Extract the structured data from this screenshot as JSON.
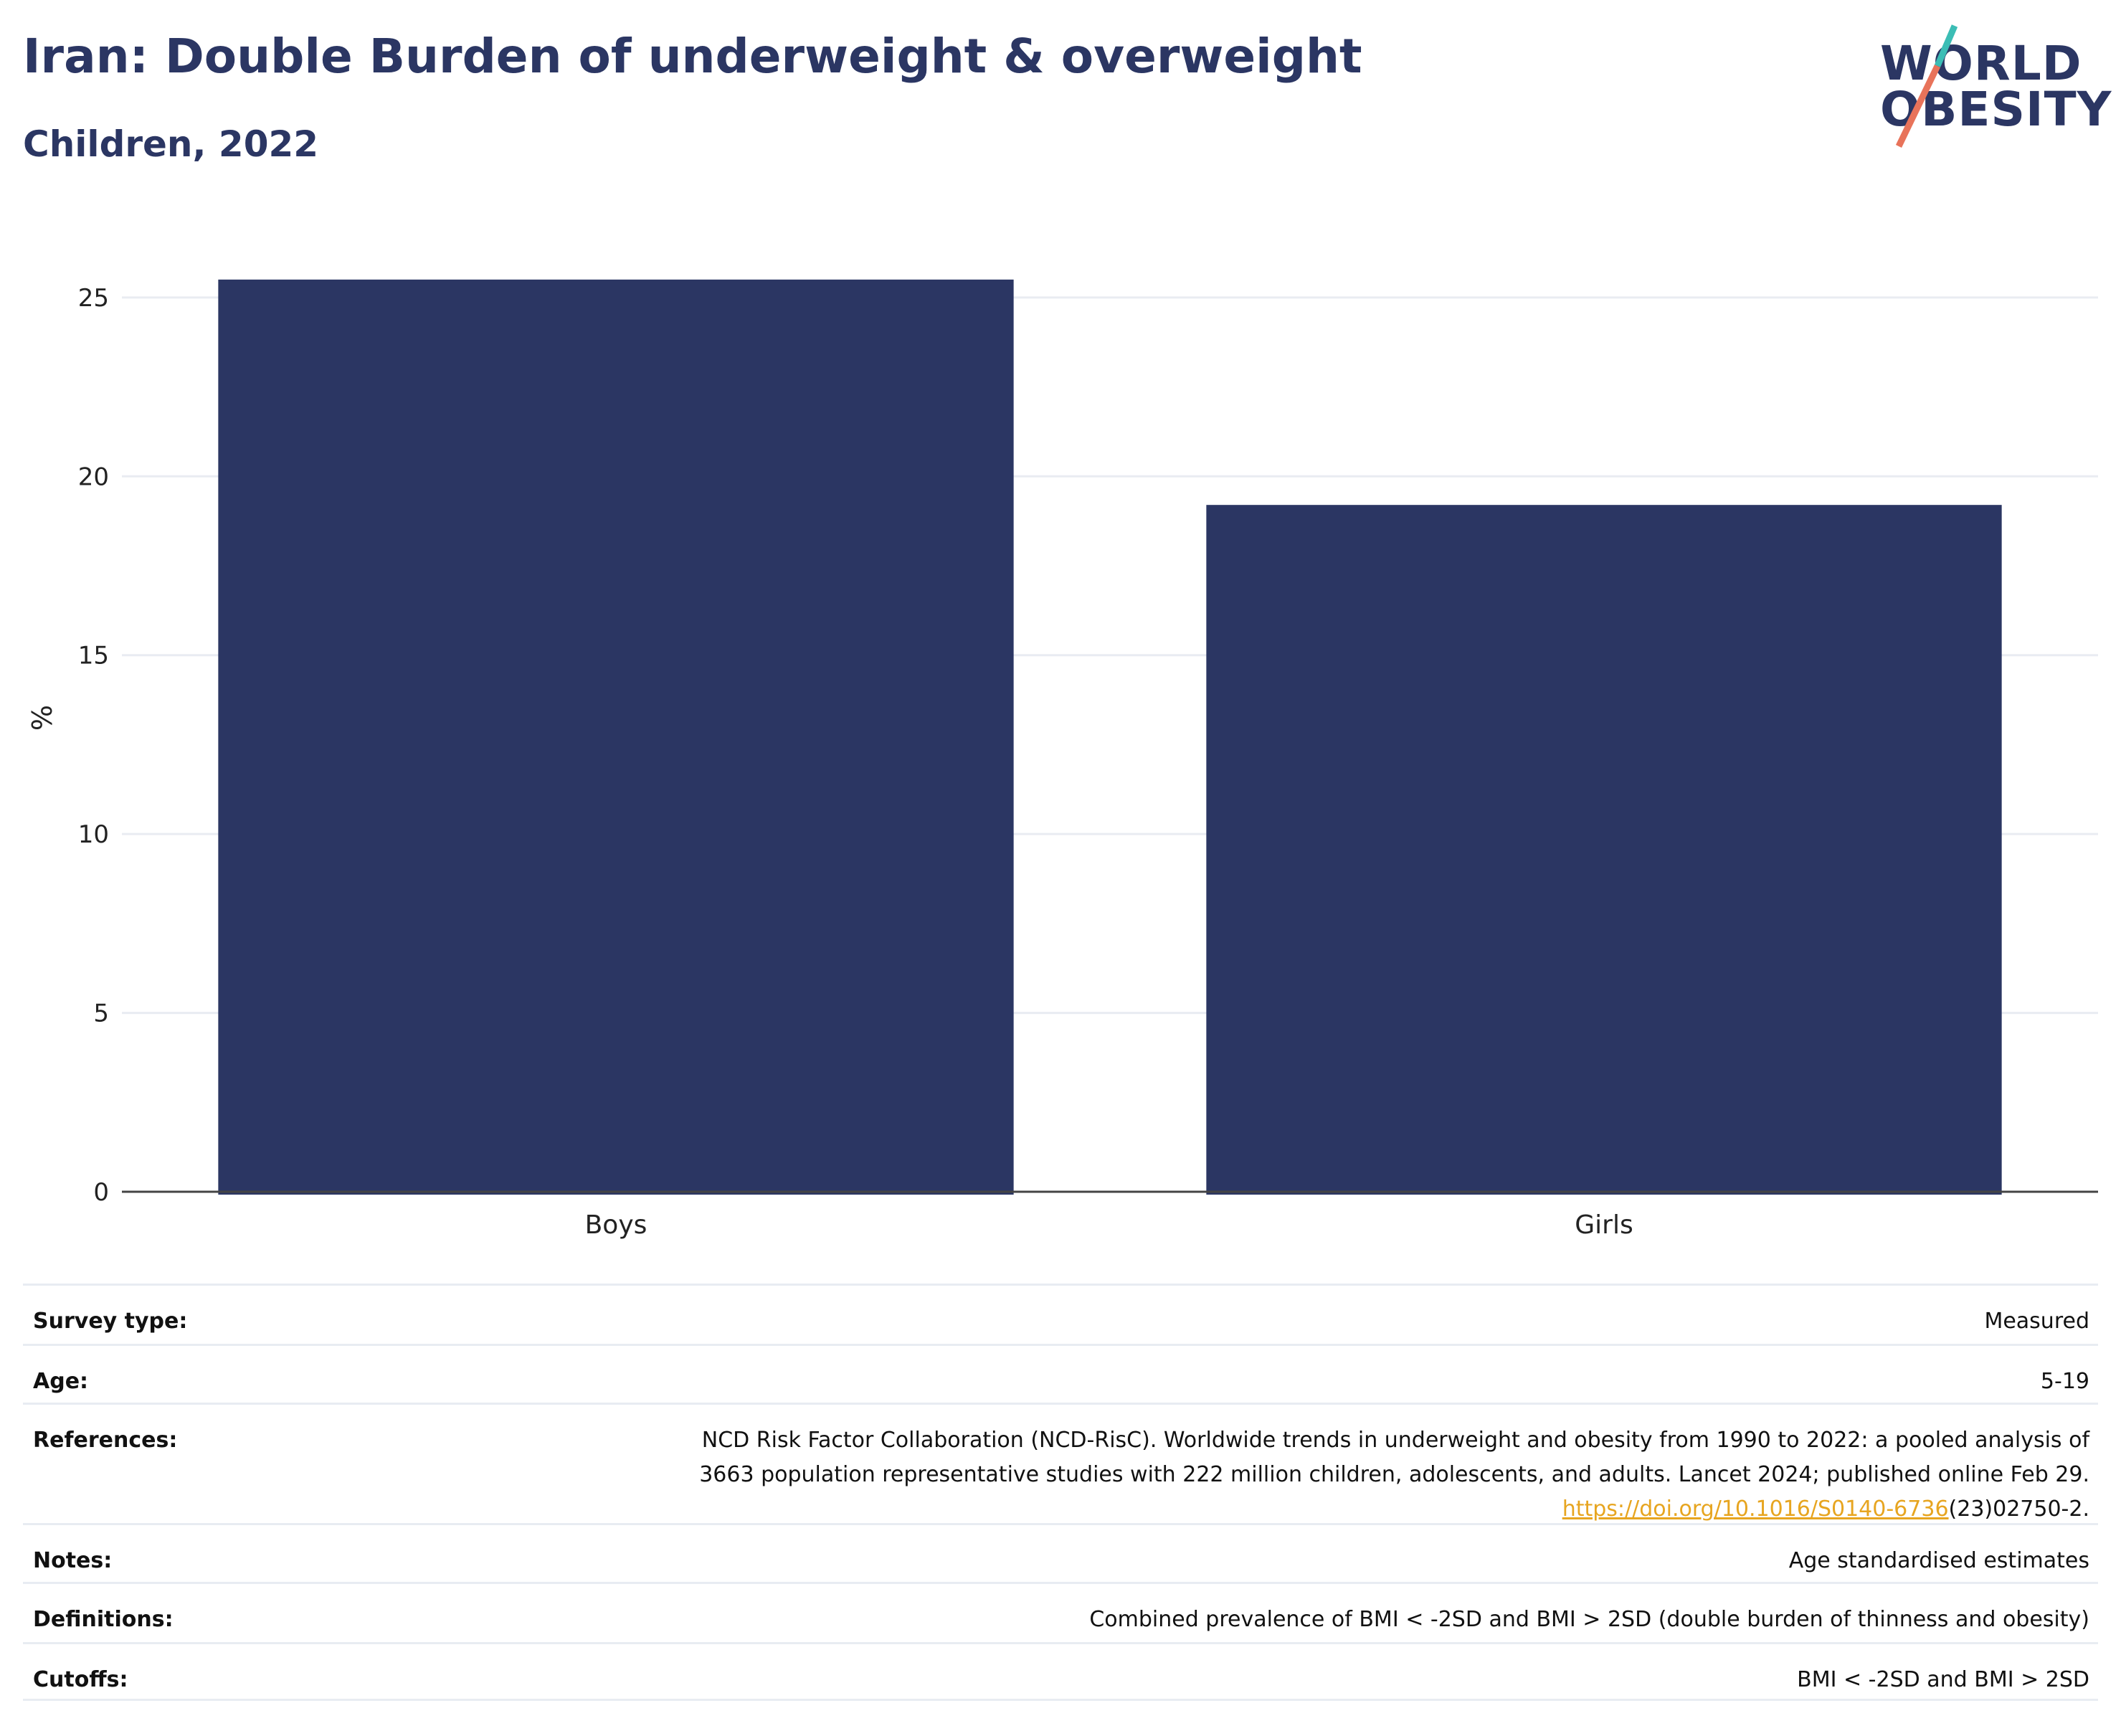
{
  "header": {
    "title": "Iran: Double Burden of underweight & overweight",
    "subtitle": "Children, 2022"
  },
  "logo": {
    "line1": "WORLD",
    "line2": "OBESITY",
    "icon": "world-obesity-slash-logo",
    "colors": {
      "text": "#2b3663",
      "slash_top": "#3bbdb5",
      "slash_bottom": "#e8735a"
    }
  },
  "chart_data": {
    "type": "bar",
    "categories": [
      "Boys",
      "Girls"
    ],
    "values": [
      25.5,
      19.2
    ],
    "title": "Iran: Double Burden of underweight & overweight",
    "subtitle": "Children, 2022",
    "xlabel": "",
    "ylabel": "%",
    "ylim": [
      0,
      26.5
    ],
    "yticks": [
      0,
      5,
      10,
      15,
      20,
      25
    ],
    "grid": true,
    "legend": "none",
    "bar_color": "#2b3663"
  },
  "meta": {
    "rows": [
      {
        "label": "Survey type:",
        "value": "Measured"
      },
      {
        "label": "Age:",
        "value": "5-19"
      },
      {
        "label": "References:",
        "value_lines": [
          "NCD Risk Factor Collaboration (NCD-RisC). Worldwide trends in underweight and obesity from 1990 to 2022: a pooled analysis of",
          "3663 population representative studies with 222 million children, adolescents, and adults. Lancet 2024; published online Feb 29."
        ],
        "link_text": "https://doi.org/10.1016/S0140-6736",
        "link_suffix": "(23)02750-2."
      },
      {
        "label": "Notes:",
        "value": "Age standardised estimates"
      },
      {
        "label": "Definitions:",
        "value": "Combined prevalence of BMI < -2SD and BMI > 2SD (double burden of thinness and obesity)"
      },
      {
        "label": "Cutoffs:",
        "value": "BMI < -2SD and BMI > 2SD"
      }
    ]
  }
}
